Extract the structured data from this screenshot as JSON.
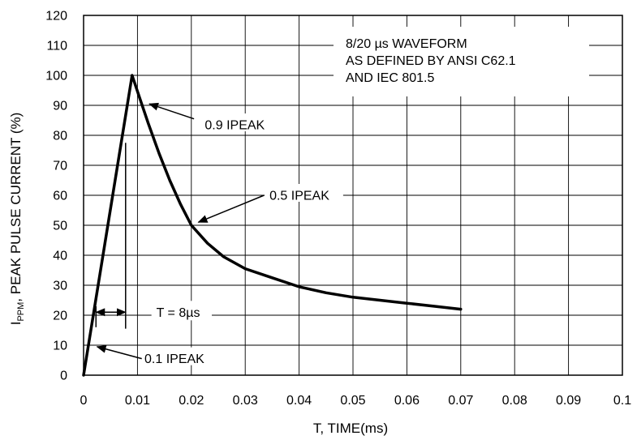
{
  "chart_data": {
    "type": "line",
    "title": "",
    "xlabel": "T, TIME(ms)",
    "ylabel": {
      "main": "I",
      "subscript": "PPM",
      "rest": ", PEAK PULSE CURRENT (%)"
    },
    "xlim": [
      0,
      0.1
    ],
    "ylim": [
      0,
      120
    ],
    "grid": true,
    "x_ticks": [
      "0",
      "0.01",
      "0.02",
      "0.03",
      "0.04",
      "0.05",
      "0.06",
      "0.07",
      "0.08",
      "0.09",
      "0.1"
    ],
    "y_ticks": [
      "0",
      "10",
      "20",
      "30",
      "40",
      "50",
      "60",
      "70",
      "80",
      "90",
      "100",
      "110",
      "120"
    ],
    "series": [
      {
        "x": [
          0,
          0.009,
          0.0105,
          0.012,
          0.014,
          0.016,
          0.018,
          0.02,
          0.023,
          0.026,
          0.03,
          0.035,
          0.04,
          0.045,
          0.05,
          0.055,
          0.06,
          0.065,
          0.07
        ],
        "y": [
          0,
          100,
          92,
          84,
          74,
          65,
          57,
          50,
          44,
          39.5,
          35.5,
          32.5,
          29.5,
          27.5,
          26,
          25,
          24,
          23,
          22
        ],
        "color": "#000000"
      }
    ],
    "info_box": [
      "8/20 µs WAVEFORM",
      "AS DEFINED BY ANSI C62.1",
      "AND IEC 801.5"
    ],
    "annotations": [
      {
        "text": "0.9 IPEAK",
        "text_at": [
          0.0225,
          83.5
        ],
        "arrow_tail": [
          0.0205,
          85.5
        ],
        "arrow_head": [
          0.0122,
          90.5
        ]
      },
      {
        "text": "0.5 IPEAK",
        "text_at": [
          0.0345,
          60
        ],
        "arrow_tail": [
          0.0335,
          60
        ],
        "arrow_head": [
          0.0213,
          51
        ]
      },
      {
        "text": "0.1 IPEAK",
        "text_at": [
          0.0113,
          5.5
        ],
        "arrow_tail": [
          0.0108,
          5.5
        ],
        "arrow_head": [
          0.0025,
          9.5
        ]
      },
      {
        "text": "T = 8µs",
        "text_at": [
          0.0135,
          21
        ],
        "dimension_x": [
          0.0023,
          0.0078
        ],
        "dimension_y": 21,
        "left_mark": [
          0.0023,
          16,
          23
        ],
        "right_mark": [
          0.0078,
          15.5,
          77.5
        ]
      }
    ]
  }
}
